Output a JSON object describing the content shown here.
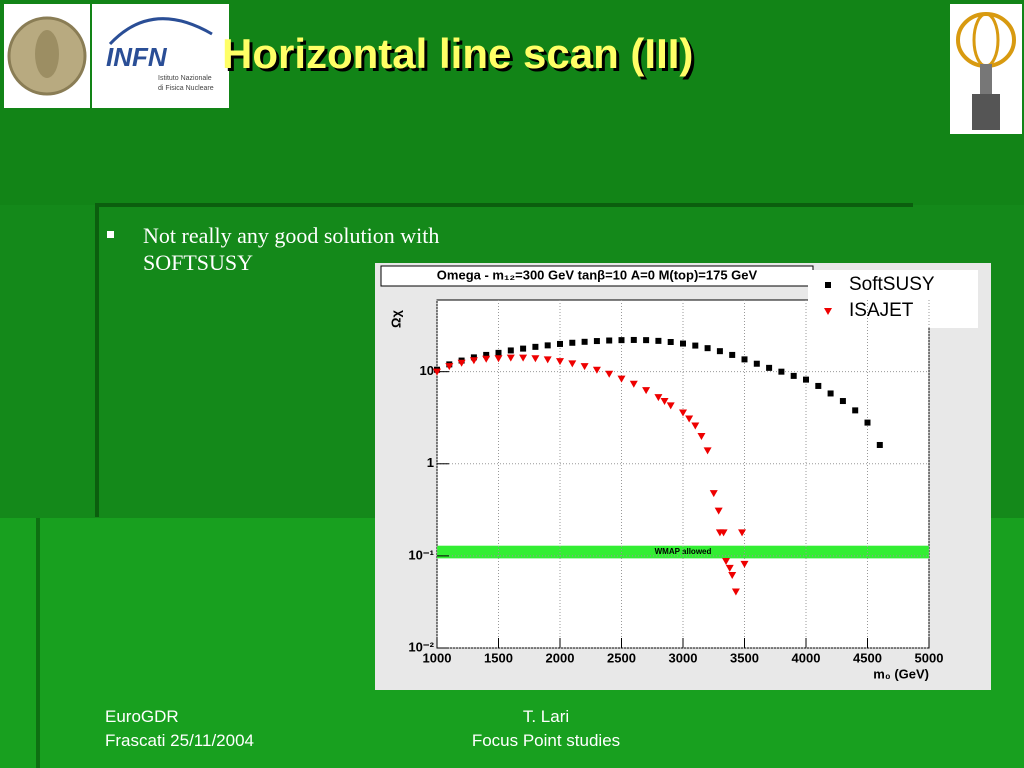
{
  "slide": {
    "title": "Horizontal line scan (III)",
    "bullets": [
      "Not really any good solution with SOFTSUSY"
    ],
    "logo_text": "INFN",
    "logo_sub": [
      "Istituto Nazionale",
      "di Fisica Nucleare"
    ],
    "footer_left": [
      "EuroGDR",
      "Frascati 25/11/2004"
    ],
    "footer_center": [
      "T. Lari",
      "Focus Point studies"
    ]
  },
  "chart_data": {
    "type": "scatter",
    "title": "Omega - m₁₂=300 GeV tanβ=10 A=0 M(top)=175 GeV",
    "x_label": "m₀ (GeV)",
    "y_label": "Ωχ",
    "xlim": [
      1000,
      5000
    ],
    "xticks": [
      1000,
      1500,
      2000,
      2500,
      3000,
      3500,
      4000,
      4500,
      5000
    ],
    "ylim": [
      0.01,
      60
    ],
    "log_y": true,
    "yticks": [
      {
        "value": 0.01,
        "label": "10⁻²"
      },
      {
        "value": 0.1,
        "label": "10⁻¹"
      },
      1,
      10
    ],
    "grid": true,
    "band": {
      "label": "WMAP allowed",
      "range": [
        0.094,
        0.129
      ],
      "color": "#33ee33"
    },
    "legend": "top-right",
    "series": [
      {
        "name": "SoftSUSY",
        "color": "#000000",
        "marker": "square",
        "x": [
          1000,
          1100,
          1200,
          1300,
          1400,
          1500,
          1600,
          1700,
          1800,
          1900,
          2000,
          2100,
          2200,
          2300,
          2400,
          2500,
          2600,
          2700,
          2800,
          2900,
          3000,
          3100,
          3200,
          3300,
          3400,
          3500,
          3600,
          3700,
          3800,
          3900,
          4000,
          4100,
          4200,
          4300,
          4400,
          4500,
          4600
        ],
        "values": [
          10.5,
          12,
          13.2,
          14.3,
          15.2,
          16,
          17,
          17.8,
          18.6,
          19.3,
          20,
          20.6,
          21.1,
          21.5,
          21.8,
          22,
          22.1,
          22,
          21.6,
          21,
          20.2,
          19.2,
          18,
          16.7,
          15.2,
          13.6,
          12.2,
          11,
          10,
          9,
          8.2,
          7,
          5.8,
          4.8,
          3.8,
          2.8,
          1.6
        ]
      },
      {
        "name": "ISAJET",
        "color": "#ee0000",
        "marker": "triangle-down",
        "x": [
          1000,
          1100,
          1200,
          1300,
          1400,
          1500,
          1600,
          1700,
          1800,
          1900,
          2000,
          2100,
          2200,
          2300,
          2400,
          2500,
          2600,
          2700,
          2800,
          2850,
          2900,
          3000,
          3050,
          3100,
          3150,
          3200,
          3250,
          3290,
          3300,
          3330,
          3350,
          3380,
          3400,
          3430,
          3480,
          3500
        ],
        "values": [
          10,
          11.5,
          12.5,
          13.3,
          13.8,
          14,
          14.2,
          14.2,
          14,
          13.6,
          13,
          12.3,
          11.5,
          10.5,
          9.5,
          8.4,
          7.4,
          6.3,
          5.3,
          4.8,
          4.3,
          3.6,
          3.1,
          2.6,
          2.0,
          1.4,
          0.48,
          0.31,
          0.18,
          0.18,
          0.088,
          0.074,
          0.062,
          0.041,
          0.18,
          0.082
        ]
      }
    ]
  }
}
